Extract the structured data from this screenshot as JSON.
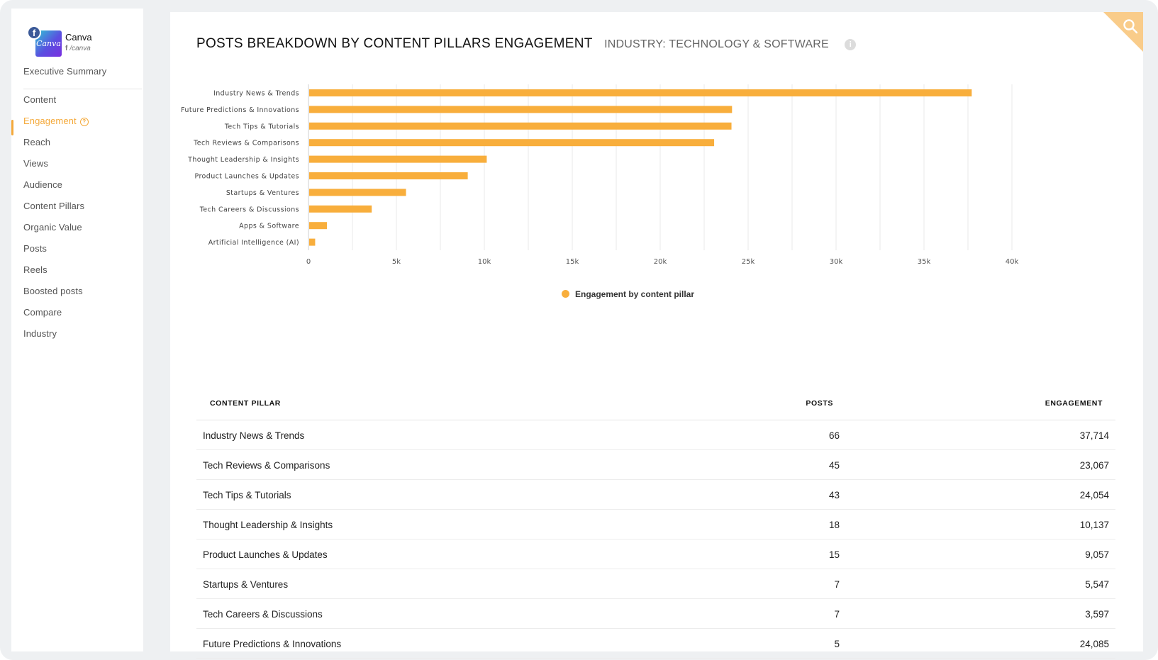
{
  "profile": {
    "name": "Canva",
    "handle": "/canva",
    "logo_text": "Canva",
    "network_icon": "facebook-icon"
  },
  "nav": [
    {
      "label": "Executive Summary",
      "active": false
    },
    {
      "label": "Content",
      "active": false
    },
    {
      "label": "Engagement",
      "active": true
    },
    {
      "label": "Reach",
      "active": false
    },
    {
      "label": "Views",
      "active": false
    },
    {
      "label": "Audience",
      "active": false
    },
    {
      "label": "Content Pillars",
      "active": false
    },
    {
      "label": "Organic Value",
      "active": false
    },
    {
      "label": "Posts",
      "active": false
    },
    {
      "label": "Reels",
      "active": false
    },
    {
      "label": "Boosted posts",
      "active": false
    },
    {
      "label": "Compare",
      "active": false
    },
    {
      "label": "Industry",
      "active": false
    }
  ],
  "header": {
    "title": "POSTS BREAKDOWN BY CONTENT PILLARS ENGAGEMENT",
    "subtitle": "INDUSTRY: TECHNOLOGY & SOFTWARE",
    "info_icon": "i"
  },
  "colors": {
    "accent": "#f8ae3c",
    "active_nav": "#f4a93a"
  },
  "chart_data": {
    "type": "bar",
    "orientation": "horizontal",
    "categories": [
      "Industry News & Trends",
      "Future Predictions & Innovations",
      "Tech Tips & Tutorials",
      "Tech Reviews & Comparisons",
      "Thought Leadership & Insights",
      "Product Launches & Updates",
      "Startups & Ventures",
      "Tech Careers & Discussions",
      "Apps & Software",
      "Artificial Intelligence (AI)"
    ],
    "values": [
      37714,
      24085,
      24054,
      23067,
      10137,
      9057,
      5547,
      3597,
      1050,
      380
    ],
    "series": [
      {
        "name": "Engagement by content pillar"
      }
    ],
    "xlim": [
      0,
      40000
    ],
    "xticks": [
      0,
      5000,
      10000,
      15000,
      20000,
      25000,
      30000,
      35000,
      40000
    ],
    "xtick_labels": [
      "0",
      "5k",
      "10k",
      "15k",
      "20k",
      "25k",
      "30k",
      "35k",
      "40k"
    ],
    "grid": true,
    "legend": "bottom-center"
  },
  "table": {
    "headers": {
      "pillar": "CONTENT PILLAR",
      "posts": "POSTS",
      "engagement": "ENGAGEMENT"
    },
    "rows": [
      {
        "pillar": "Industry News & Trends",
        "posts": "66",
        "engagement": "37,714"
      },
      {
        "pillar": "Tech Reviews & Comparisons",
        "posts": "45",
        "engagement": "23,067"
      },
      {
        "pillar": "Tech Tips & Tutorials",
        "posts": "43",
        "engagement": "24,054"
      },
      {
        "pillar": "Thought Leadership & Insights",
        "posts": "18",
        "engagement": "10,137"
      },
      {
        "pillar": "Product Launches & Updates",
        "posts": "15",
        "engagement": "9,057"
      },
      {
        "pillar": "Startups & Ventures",
        "posts": "7",
        "engagement": "5,547"
      },
      {
        "pillar": "Tech Careers & Discussions",
        "posts": "7",
        "engagement": "3,597"
      },
      {
        "pillar": "Future Predictions & Innovations",
        "posts": "5",
        "engagement": "24,085"
      }
    ]
  }
}
